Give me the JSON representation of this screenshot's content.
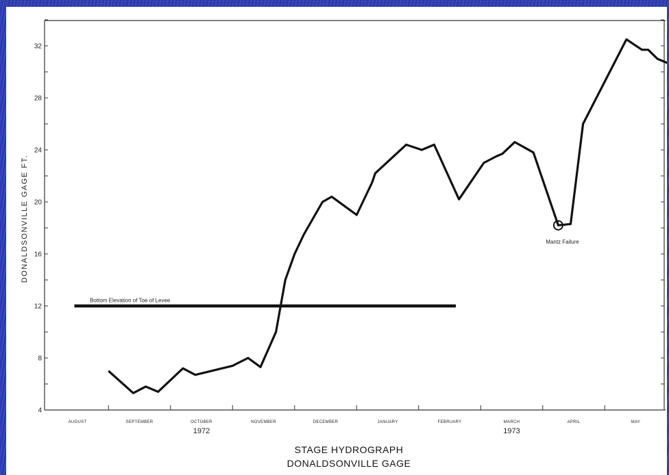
{
  "chart_data": {
    "type": "line",
    "title": "STAGE HYDROGRAPH",
    "subtitle": "DONALDSONVILLE GAGE",
    "ylabel": "DONALDSONVILLE GAGE FT.",
    "xlabel": "",
    "ylim": [
      4,
      34
    ],
    "yticks": [
      4,
      8,
      12,
      16,
      20,
      24,
      28,
      32
    ],
    "ytick_labels": [
      "4",
      "8",
      "12",
      "16",
      "20",
      "24",
      "28",
      "32"
    ],
    "x_months": [
      "AUGUST",
      "SEPTEMBER",
      "OCTOBER",
      "NOVEMBER",
      "DECEMBER",
      "JANUARY",
      "FEBRUARY",
      "MARCH",
      "APRIL",
      "MAY"
    ],
    "year_labels": [
      {
        "text": "1972",
        "month": "OCTOBER"
      },
      {
        "text": "1973",
        "month": "MARCH"
      }
    ],
    "grid": false,
    "series": [
      {
        "x": [
          1.5,
          1.9,
          2.1,
          2.3,
          2.7,
          2.9,
          3.5,
          3.75,
          3.95,
          4.2,
          4.35,
          4.5,
          4.65,
          4.95,
          5.1,
          5.5,
          5.75,
          5.8,
          6.05,
          6.3,
          6.55,
          6.75,
          7.15,
          7.55,
          7.75,
          7.85,
          8.05,
          8.35,
          8.75,
          8.95,
          9.15,
          9.85,
          10.1,
          10.2,
          10.35,
          10.55,
          10.75,
          11.0,
          11.3
        ],
        "y": [
          7.0,
          5.3,
          5.8,
          5.4,
          7.2,
          6.7,
          7.4,
          8.0,
          7.3,
          10.0,
          14.0,
          16.0,
          17.5,
          20.0,
          20.4,
          19.0,
          21.5,
          22.2,
          23.3,
          24.4,
          24.0,
          24.4,
          20.2,
          23.0,
          23.5,
          23.7,
          24.6,
          23.8,
          18.2,
          18.3,
          26.0,
          32.5,
          31.7,
          31.7,
          31.0,
          30.6,
          30.7,
          30.9,
          32.0
        ]
      },
      {
        "name": "Bottom Elevation of Toe of Levee",
        "x": [
          0.95,
          7.1
        ],
        "y": [
          12.0,
          12.0
        ]
      }
    ],
    "annotations": [
      {
        "text": "Bottom Elevation of Toe of Levee",
        "x": 1.2,
        "y": 12.3
      },
      {
        "text": "Mantz Failure",
        "x": 8.55,
        "y": 16.8,
        "marker": "circle",
        "marker_x": 8.75,
        "marker_y": 18.2
      }
    ]
  }
}
